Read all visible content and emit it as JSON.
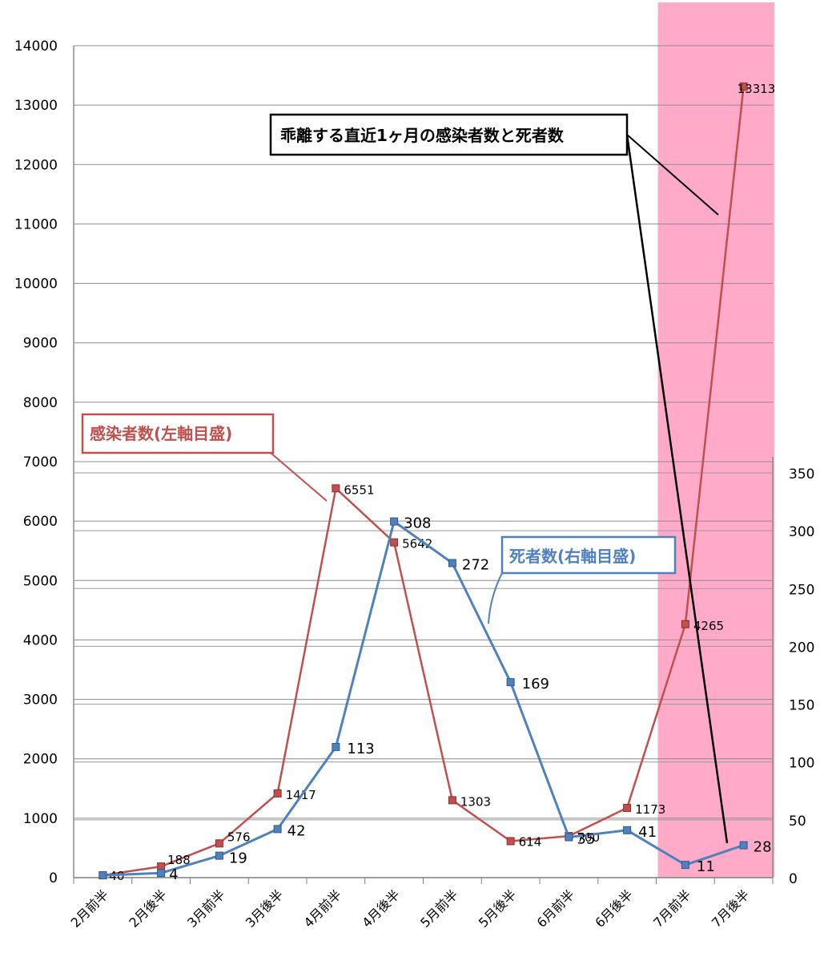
{
  "chart_data": {
    "type": "line",
    "categories": [
      "2月前半",
      "2月後半",
      "3月前半",
      "3月後半",
      "4月前半",
      "4月後半",
      "5月前半",
      "5月後半",
      "6月前半",
      "6月後半",
      "7月前半",
      "7月後半"
    ],
    "series": [
      {
        "name": "感染者数(左軸目盛)",
        "axis": "left",
        "color": "#c0504d",
        "values": [
          40,
          188,
          576,
          1417,
          6551,
          5642,
          1303,
          614,
          700,
          1173,
          4265,
          13313
        ],
        "data_labels": [
          "40",
          "188",
          "576",
          "1417",
          "6551",
          "5642",
          "1303",
          "614",
          "700",
          "1173",
          "4265",
          "13313"
        ]
      },
      {
        "name": "死者数(右軸目盛)",
        "axis": "right",
        "color": "#4f81bd",
        "values": [
          2,
          4,
          19,
          42,
          113,
          308,
          272,
          169,
          35,
          41,
          11,
          28
        ],
        "data_labels": [
          "",
          "4",
          "19",
          "42",
          "113",
          "308",
          "272",
          "169",
          "35",
          "41",
          "11",
          "28"
        ]
      }
    ],
    "left_axis": {
      "ylim": [
        0,
        14000
      ],
      "ticks": [
        "0",
        "1000",
        "2000",
        "3000",
        "4000",
        "5000",
        "6000",
        "7000",
        "8000",
        "9000",
        "10000",
        "11000",
        "12000",
        "13000",
        "14000"
      ]
    },
    "right_axis": {
      "ylim": [
        0,
        350
      ],
      "ticks": [
        "0",
        "50",
        "100",
        "150",
        "200",
        "250",
        "300",
        "350"
      ]
    },
    "highlight": {
      "from_category": "7月前半",
      "to_category": "7月後半",
      "color": "#ffaac9"
    },
    "grid": true,
    "annotations": {
      "main": "乖離する直近1ヶ月の感染者数と死者数",
      "infections_box": "感染者数(左軸目盛)",
      "deaths_box": "死者数(右軸目盛)"
    }
  }
}
